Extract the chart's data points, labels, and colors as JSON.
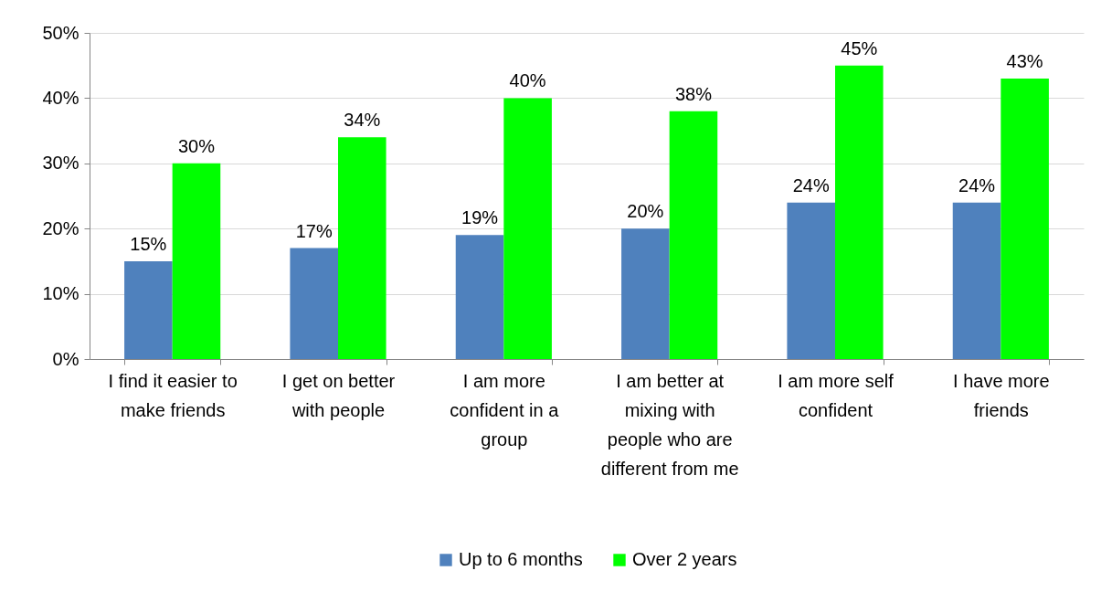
{
  "chart_data": {
    "type": "bar",
    "categories": [
      "I find it easier to make friends",
      "I get on better with people",
      "I am more confident in a group",
      "I am better at mixing with people who are different from me",
      "I am more self confident",
      "I have more friends"
    ],
    "series": [
      {
        "name": "Up to 6 months",
        "color": "#4f81bd",
        "values": [
          15,
          17,
          19,
          20,
          24,
          24
        ],
        "value_labels": [
          "15%",
          "17%",
          "19%",
          "20%",
          "24%",
          "24%"
        ]
      },
      {
        "name": "Over 2 years",
        "color": "#00ff00",
        "values": [
          30,
          34,
          40,
          38,
          45,
          43
        ],
        "value_labels": [
          "30%",
          "34%",
          "40%",
          "38%",
          "45%",
          "43%"
        ]
      }
    ],
    "ylim": [
      0,
      50
    ],
    "yticks": [
      {
        "value": 0,
        "label": "0%"
      },
      {
        "value": 10,
        "label": "10%"
      },
      {
        "value": 20,
        "label": "20%"
      },
      {
        "value": 30,
        "label": "30%"
      },
      {
        "value": 40,
        "label": "40%"
      },
      {
        "value": 50,
        "label": "50%"
      }
    ],
    "grid": "y",
    "legend": "bottom"
  }
}
